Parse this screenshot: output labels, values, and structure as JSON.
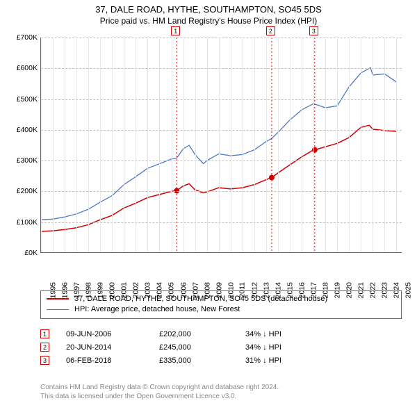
{
  "title1": "37, DALE ROAD, HYTHE, SOUTHAMPTON, SO45 5DS",
  "title2": "Price paid vs. HM Land Registry's House Price Index (HPI)",
  "chart": {
    "type": "line",
    "background_color": "#ffffff",
    "grid_color": "#bfbfbf",
    "grid_minor_color": "#e6e6e6",
    "x": {
      "min": 1995,
      "max": 2025.5,
      "labels": [
        1995,
        1996,
        1997,
        1998,
        1999,
        2000,
        2001,
        2002,
        2003,
        2004,
        2005,
        2006,
        2007,
        2008,
        2009,
        2010,
        2011,
        2012,
        2013,
        2014,
        2015,
        2016,
        2017,
        2018,
        2019,
        2020,
        2021,
        2022,
        2023,
        2024,
        2025
      ]
    },
    "y": {
      "min": 0,
      "max": 700000,
      "labels": [
        "£0K",
        "£100K",
        "£200K",
        "£300K",
        "£400K",
        "£500K",
        "£600K",
        "£700K"
      ],
      "step": 100000
    },
    "series": {
      "price": {
        "color": "#d00000",
        "width": 1.5,
        "label": "37, DALE ROAD, HYTHE, SOUTHAMPTON, SO45 5DS (detached house)",
        "points": [
          [
            1995,
            70000
          ],
          [
            1996,
            72000
          ],
          [
            1997,
            76000
          ],
          [
            1998,
            82000
          ],
          [
            1999,
            92000
          ],
          [
            2000,
            108000
          ],
          [
            2001,
            122000
          ],
          [
            2002,
            146000
          ],
          [
            2003,
            162000
          ],
          [
            2004,
            180000
          ],
          [
            2005,
            190000
          ],
          [
            2006,
            200000
          ],
          [
            2006.45,
            202000
          ],
          [
            2007,
            218000
          ],
          [
            2007.5,
            225000
          ],
          [
            2008,
            205000
          ],
          [
            2008.7,
            195000
          ],
          [
            2009,
            198000
          ],
          [
            2010,
            212000
          ],
          [
            2011,
            208000
          ],
          [
            2012,
            212000
          ],
          [
            2013,
            222000
          ],
          [
            2014,
            238000
          ],
          [
            2014.47,
            245000
          ],
          [
            2015,
            260000
          ],
          [
            2016,
            286000
          ],
          [
            2017,
            312000
          ],
          [
            2018,
            335000
          ],
          [
            2018.1,
            335000
          ],
          [
            2019,
            345000
          ],
          [
            2020,
            356000
          ],
          [
            2021,
            375000
          ],
          [
            2022,
            408000
          ],
          [
            2022.7,
            415000
          ],
          [
            2023,
            402000
          ],
          [
            2024,
            398000
          ],
          [
            2025,
            395000
          ]
        ]
      },
      "hpi": {
        "color": "#4e79c4",
        "width": 1.3,
        "label": "HPI: Average price, detached house, New Forest",
        "points": [
          [
            1995,
            108000
          ],
          [
            1996,
            110000
          ],
          [
            1997,
            117000
          ],
          [
            1998,
            127000
          ],
          [
            1999,
            142000
          ],
          [
            2000,
            165000
          ],
          [
            2001,
            186000
          ],
          [
            2002,
            222000
          ],
          [
            2003,
            248000
          ],
          [
            2004,
            275000
          ],
          [
            2005,
            290000
          ],
          [
            2006,
            305000
          ],
          [
            2006.45,
            308000
          ],
          [
            2007,
            338000
          ],
          [
            2007.5,
            350000
          ],
          [
            2008,
            320000
          ],
          [
            2008.7,
            290000
          ],
          [
            2009,
            300000
          ],
          [
            2010,
            322000
          ],
          [
            2011,
            316000
          ],
          [
            2012,
            320000
          ],
          [
            2013,
            335000
          ],
          [
            2014,
            362000
          ],
          [
            2014.47,
            372000
          ],
          [
            2015,
            392000
          ],
          [
            2016,
            432000
          ],
          [
            2017,
            465000
          ],
          [
            2018,
            485000
          ],
          [
            2019,
            472000
          ],
          [
            2020,
            478000
          ],
          [
            2021,
            540000
          ],
          [
            2022,
            585000
          ],
          [
            2022.8,
            602000
          ],
          [
            2023,
            578000
          ],
          [
            2024,
            582000
          ],
          [
            2025,
            555000
          ]
        ]
      }
    },
    "sale_markers": [
      {
        "n": "1",
        "x": 2006.45,
        "y": 202000
      },
      {
        "n": "2",
        "x": 2014.47,
        "y": 245000
      },
      {
        "n": "3",
        "x": 2018.1,
        "y": 335000
      }
    ],
    "marker_color": "#d00000",
    "marker_radius": 4
  },
  "events": [
    {
      "n": "1",
      "date": "09-JUN-2006",
      "price": "£202,000",
      "pct": "34% ↓ HPI"
    },
    {
      "n": "2",
      "date": "20-JUN-2014",
      "price": "£245,000",
      "pct": "34% ↓ HPI"
    },
    {
      "n": "3",
      "date": "06-FEB-2018",
      "price": "£335,000",
      "pct": "31% ↓ HPI"
    }
  ],
  "attrib1": "Contains HM Land Registry data © Crown copyright and database right 2024.",
  "attrib2": "This data is licensed under the Open Government Licence v3.0."
}
